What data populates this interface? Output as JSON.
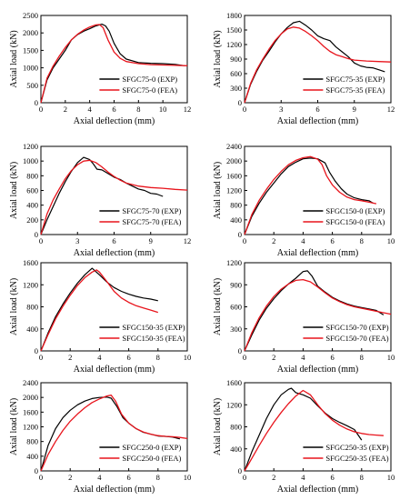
{
  "colors": {
    "exp": "#000000",
    "fea": "#e8141c"
  },
  "chart_data": [
    {
      "type": "line",
      "xlabel": "Axial deflection (mm)",
      "ylabel": "Axial load (kN)",
      "xlim": [
        0,
        12
      ],
      "ylim": [
        0,
        2500
      ],
      "xticks": [
        0,
        2,
        4,
        6,
        8,
        10,
        12
      ],
      "yticks": [
        0,
        500,
        1000,
        1500,
        2000,
        2500
      ],
      "legend": "bottom-right",
      "series": [
        {
          "name": "SFGC75-0 (EXP)",
          "style": "exp",
          "x": [
            0,
            0.5,
            1,
            1.5,
            2,
            2.5,
            3,
            3.5,
            4,
            4.5,
            5,
            5.3,
            5.6,
            6,
            6.5,
            7,
            8,
            9,
            10,
            11,
            11.8
          ],
          "y": [
            0,
            650,
            1000,
            1250,
            1500,
            1800,
            1950,
            2050,
            2120,
            2200,
            2250,
            2200,
            2050,
            1700,
            1400,
            1250,
            1150,
            1130,
            1120,
            1100,
            1060
          ]
        },
        {
          "name": "SFGC75-0 (FEA)",
          "style": "fea",
          "x": [
            0,
            0.5,
            1,
            1.5,
            2,
            2.5,
            3,
            3.5,
            4,
            4.5,
            4.8,
            5.1,
            5.5,
            6,
            6.5,
            7,
            8,
            9,
            10,
            11,
            12
          ],
          "y": [
            0,
            700,
            1050,
            1330,
            1580,
            1800,
            1960,
            2080,
            2170,
            2230,
            2240,
            2150,
            1800,
            1450,
            1270,
            1180,
            1120,
            1090,
            1080,
            1070,
            1060
          ]
        }
      ]
    },
    {
      "type": "line",
      "xlabel": "Axial deflection (mm)",
      "ylabel": "Axial load (kN)",
      "xlim": [
        0,
        12
      ],
      "ylim": [
        0,
        1800
      ],
      "xticks": [
        0,
        3,
        6,
        9,
        12
      ],
      "yticks": [
        0,
        300,
        600,
        900,
        1200,
        1500,
        1800
      ],
      "legend": "bottom-right",
      "series": [
        {
          "name": "SFGC75-35 (EXP)",
          "style": "exp",
          "x": [
            0,
            0.5,
            1,
            1.5,
            2,
            2.5,
            3,
            3.5,
            4,
            4.5,
            5,
            5.5,
            6,
            6.5,
            7,
            7.5,
            8,
            8.5,
            9,
            9.5,
            10,
            10.5,
            11,
            11.5
          ],
          "y": [
            0,
            380,
            650,
            880,
            1060,
            1250,
            1420,
            1550,
            1650,
            1680,
            1600,
            1500,
            1380,
            1320,
            1280,
            1150,
            1050,
            950,
            820,
            760,
            730,
            720,
            680,
            640
          ]
        },
        {
          "name": "SFGC75-35 (FEA)",
          "style": "fea",
          "x": [
            0,
            0.5,
            1,
            1.5,
            2,
            2.5,
            3,
            3.5,
            4,
            4.5,
            5,
            5.5,
            6,
            6.5,
            7,
            7.5,
            8,
            8.5,
            9,
            10,
            11,
            12
          ],
          "y": [
            0,
            400,
            680,
            900,
            1100,
            1280,
            1420,
            1520,
            1560,
            1540,
            1470,
            1380,
            1280,
            1160,
            1060,
            990,
            950,
            910,
            880,
            860,
            850,
            840
          ]
        }
      ]
    },
    {
      "type": "line",
      "xlabel": "Axial deflection (mm)",
      "ylabel": "Axial load (kN)",
      "xlim": [
        0,
        12
      ],
      "ylim": [
        0,
        1200
      ],
      "xticks": [
        0,
        3,
        6,
        9,
        12
      ],
      "yticks": [
        0,
        200,
        400,
        600,
        800,
        1000,
        1200
      ],
      "legend": "bottom-right",
      "series": [
        {
          "name": "SFGC75-70 (EXP)",
          "style": "exp",
          "x": [
            0,
            0.5,
            1,
            1.5,
            2,
            2.5,
            3,
            3.5,
            4,
            4.3,
            4.6,
            5,
            5.5,
            6,
            6.5,
            7,
            7.5,
            8,
            8.5,
            9,
            9.5,
            10
          ],
          "y": [
            0,
            200,
            380,
            560,
            720,
            860,
            980,
            1050,
            1020,
            960,
            890,
            880,
            830,
            780,
            750,
            700,
            660,
            620,
            600,
            560,
            550,
            520
          ]
        },
        {
          "name": "SFGC75-70 (FEA)",
          "style": "fea",
          "x": [
            0,
            0.5,
            1,
            1.5,
            2,
            2.5,
            3,
            3.5,
            4,
            4.5,
            5,
            5.5,
            6,
            6.5,
            7,
            8,
            9,
            10,
            11,
            12
          ],
          "y": [
            0,
            280,
            470,
            620,
            760,
            870,
            950,
            1000,
            1010,
            980,
            920,
            850,
            790,
            740,
            700,
            660,
            640,
            630,
            615,
            605
          ]
        }
      ]
    },
    {
      "type": "line",
      "xlabel": "Axial deflection (mm)",
      "ylabel": "Axial load (kN)",
      "xlim": [
        0,
        10
      ],
      "ylim": [
        0,
        2400
      ],
      "xticks": [
        0,
        2,
        4,
        6,
        8,
        10
      ],
      "yticks": [
        0,
        400,
        800,
        1200,
        1600,
        2000,
        2400
      ],
      "legend": "bottom-right",
      "series": [
        {
          "name": "SFGC150-0 (EXP)",
          "style": "exp",
          "x": [
            0,
            0.5,
            1,
            1.5,
            2,
            2.5,
            3,
            3.5,
            4,
            4.5,
            5,
            5.5,
            5.8,
            6.2,
            6.6,
            7,
            7.5,
            8,
            8.5,
            8.8
          ],
          "y": [
            0,
            500,
            850,
            1150,
            1400,
            1650,
            1850,
            1970,
            2060,
            2080,
            2060,
            1950,
            1700,
            1450,
            1250,
            1100,
            1000,
            950,
            920,
            850
          ]
        },
        {
          "name": "SFGC150-0 (FEA)",
          "style": "fea",
          "x": [
            0,
            0.5,
            1,
            1.5,
            2,
            2.5,
            3,
            3.5,
            4,
            4.5,
            5,
            5.3,
            5.6,
            6,
            6.5,
            7,
            7.5,
            8,
            8.5,
            9
          ],
          "y": [
            0,
            550,
            930,
            1230,
            1500,
            1720,
            1900,
            2020,
            2090,
            2120,
            2050,
            1900,
            1600,
            1350,
            1150,
            1020,
            950,
            920,
            880,
            840
          ]
        }
      ]
    },
    {
      "type": "line",
      "xlabel": "Axial deflection (mm)",
      "ylabel": "Axial load (kN)",
      "xlim": [
        0,
        10
      ],
      "ylim": [
        0,
        1600
      ],
      "xticks": [
        0,
        2,
        4,
        6,
        8,
        10
      ],
      "yticks": [
        0,
        400,
        800,
        1200,
        1600
      ],
      "legend": "bottom-right",
      "series": [
        {
          "name": "SFGC150-35 (EXP)",
          "style": "exp",
          "x": [
            0,
            0.5,
            1,
            1.5,
            2,
            2.5,
            3,
            3.5,
            4,
            4.5,
            5,
            5.5,
            6,
            6.5,
            7,
            7.5,
            8
          ],
          "y": [
            0,
            330,
            620,
            850,
            1050,
            1230,
            1380,
            1500,
            1380,
            1250,
            1150,
            1080,
            1030,
            990,
            960,
            940,
            910
          ]
        },
        {
          "name": "SFGC150-35 (FEA)",
          "style": "fea",
          "x": [
            0,
            0.5,
            1,
            1.5,
            2,
            2.5,
            3,
            3.5,
            3.8,
            4,
            4.5,
            5,
            5.5,
            6,
            6.5,
            7,
            7.5,
            8
          ],
          "y": [
            0,
            300,
            580,
            810,
            1010,
            1190,
            1330,
            1430,
            1470,
            1430,
            1260,
            1080,
            960,
            880,
            820,
            780,
            740,
            700
          ]
        }
      ]
    },
    {
      "type": "line",
      "xlabel": "Axial deflection (mm)",
      "ylabel": "Axial load (kN)",
      "xlim": [
        0,
        10
      ],
      "ylim": [
        0,
        1200
      ],
      "xticks": [
        0,
        2,
        4,
        6,
        8,
        10
      ],
      "yticks": [
        0,
        300,
        600,
        900,
        1200
      ],
      "legend": "bottom-right",
      "series": [
        {
          "name": "SFGC150-70 (EXP)",
          "style": "exp",
          "x": [
            0,
            0.5,
            1,
            1.5,
            2,
            2.5,
            3,
            3.5,
            4,
            4.3,
            4.6,
            5,
            5.5,
            6,
            6.5,
            7,
            7.5,
            8,
            8.5,
            9,
            9.5
          ],
          "y": [
            0,
            220,
            420,
            580,
            710,
            820,
            910,
            990,
            1080,
            1090,
            1020,
            880,
            800,
            730,
            680,
            640,
            610,
            590,
            570,
            550,
            490
          ]
        },
        {
          "name": "SFGC150-70 (FEA)",
          "style": "fea",
          "x": [
            0,
            0.5,
            1,
            1.5,
            2,
            2.5,
            3,
            3.5,
            4,
            4.5,
            5,
            5.5,
            6,
            6.5,
            7,
            7.5,
            8,
            8.5,
            9,
            9.5,
            10
          ],
          "y": [
            0,
            250,
            450,
            610,
            740,
            840,
            910,
            960,
            970,
            940,
            870,
            790,
            720,
            670,
            630,
            600,
            580,
            560,
            540,
            520,
            500
          ]
        }
      ]
    },
    {
      "type": "line",
      "xlabel": "Axial deflection (mm)",
      "ylabel": "Axial load (kN)",
      "xlim": [
        0,
        10
      ],
      "ylim": [
        0,
        2400
      ],
      "xticks": [
        0,
        2,
        4,
        6,
        8,
        10
      ],
      "yticks": [
        0,
        400,
        800,
        1200,
        1600,
        2000,
        2400
      ],
      "legend": "bottom-right",
      "series": [
        {
          "name": "SFGC250-0 (EXP)",
          "style": "exp",
          "x": [
            0,
            0.5,
            1,
            1.5,
            2,
            2.5,
            3,
            3.5,
            4,
            4.5,
            4.8,
            5.2,
            5.6,
            6,
            6.5,
            7,
            7.5,
            8,
            8.5,
            9,
            9.5
          ],
          "y": [
            0,
            700,
            1150,
            1450,
            1650,
            1800,
            1900,
            1970,
            2000,
            2010,
            1980,
            1750,
            1450,
            1300,
            1150,
            1050,
            1000,
            950,
            940,
            920,
            870
          ]
        },
        {
          "name": "SFGC250-0 (FEA)",
          "style": "fea",
          "x": [
            0,
            0.5,
            1,
            1.5,
            2,
            2.5,
            3,
            3.5,
            4,
            4.5,
            4.8,
            5.1,
            5.5,
            6,
            6.5,
            7,
            7.5,
            8,
            8.5,
            9,
            9.5,
            10
          ],
          "y": [
            0,
            450,
            800,
            1100,
            1350,
            1550,
            1720,
            1860,
            1960,
            2040,
            2060,
            1900,
            1550,
            1300,
            1150,
            1060,
            1000,
            960,
            940,
            930,
            910,
            880
          ]
        }
      ]
    },
    {
      "type": "line",
      "xlabel": "Axial deflection (mm)",
      "ylabel": "Axial load (kN)",
      "xlim": [
        0,
        10
      ],
      "ylim": [
        0,
        1600
      ],
      "xticks": [
        0,
        2,
        4,
        6,
        8,
        10
      ],
      "yticks": [
        0,
        400,
        800,
        1200,
        1600
      ],
      "legend": "bottom-right",
      "series": [
        {
          "name": "SFGC250-35 (EXP)",
          "style": "exp",
          "x": [
            0,
            0.5,
            1,
            1.5,
            2,
            2.5,
            3,
            3.2,
            3.5,
            4,
            4.5,
            5,
            5.5,
            6,
            6.5,
            7,
            7.5,
            8
          ],
          "y": [
            0,
            350,
            650,
            950,
            1200,
            1380,
            1480,
            1500,
            1420,
            1380,
            1320,
            1180,
            1050,
            950,
            880,
            820,
            750,
            560
          ]
        },
        {
          "name": "SFGC250-35 (FEA)",
          "style": "fea",
          "x": [
            0,
            0.5,
            1,
            1.5,
            2,
            2.5,
            3,
            3.5,
            4,
            4.5,
            5,
            5.5,
            6,
            6.5,
            7,
            7.5,
            8,
            8.5,
            9,
            9.5
          ],
          "y": [
            0,
            230,
            460,
            680,
            880,
            1060,
            1220,
            1360,
            1460,
            1380,
            1200,
            1040,
            920,
            830,
            760,
            710,
            680,
            660,
            650,
            640
          ]
        }
      ]
    }
  ]
}
